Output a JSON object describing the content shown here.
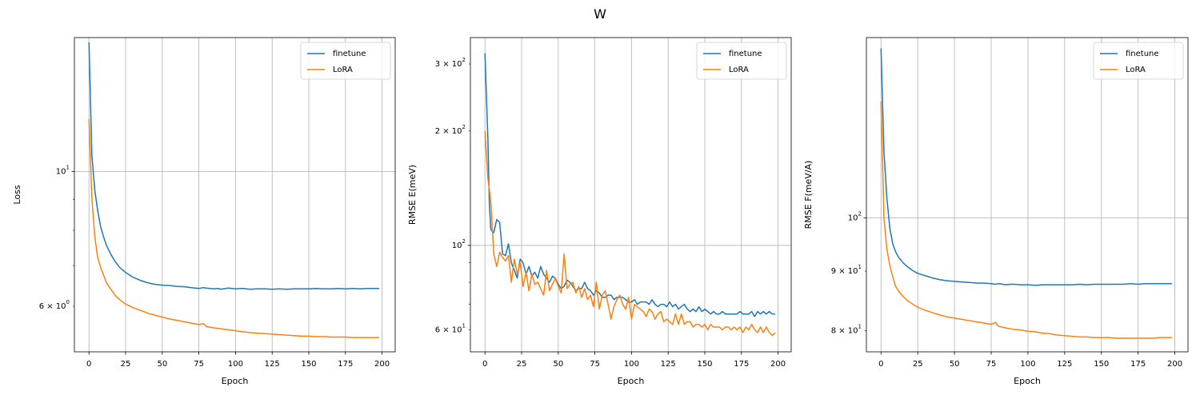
{
  "figure": {
    "title": "W"
  },
  "colors": {
    "finetune": "#1f77b4",
    "LoRA": "#ff7f0e",
    "grid": "#b0b0b0",
    "axes": "#000000",
    "legend_border": "#cccccc"
  },
  "chart_data": [
    {
      "type": "line",
      "xlabel": "Epoch",
      "ylabel": "Loss",
      "yscale": "log",
      "xlim": [
        -9.95,
        208.95
      ],
      "ylim": [
        5.05,
        16.6
      ],
      "xticks": [
        0,
        25,
        50,
        75,
        100,
        125,
        150,
        175,
        200
      ],
      "major_yticks": [
        {
          "value": 10,
          "label": "10^1"
        }
      ],
      "minor_yticks": [
        {
          "value": 6,
          "label": "6 × 10^0"
        }
      ],
      "grid": true,
      "legend": "top-right",
      "series": [
        {
          "name": "finetune",
          "x": [
            0,
            2,
            4,
            6,
            8,
            10,
            12,
            15,
            18,
            21,
            25,
            30,
            35,
            40,
            45,
            50,
            55,
            60,
            65,
            70,
            75,
            78,
            80,
            85,
            88,
            90,
            95,
            100,
            105,
            110,
            115,
            120,
            125,
            130,
            135,
            140,
            145,
            150,
            155,
            160,
            165,
            170,
            175,
            180,
            185,
            190,
            195,
            198
          ],
          "y": [
            16.3,
            10.6,
            9.3,
            8.6,
            8.1,
            7.8,
            7.55,
            7.3,
            7.1,
            6.95,
            6.82,
            6.7,
            6.62,
            6.56,
            6.52,
            6.5,
            6.49,
            6.47,
            6.46,
            6.44,
            6.42,
            6.44,
            6.43,
            6.41,
            6.42,
            6.4,
            6.43,
            6.41,
            6.42,
            6.4,
            6.41,
            6.41,
            6.4,
            6.41,
            6.4,
            6.41,
            6.41,
            6.41,
            6.42,
            6.41,
            6.41,
            6.42,
            6.41,
            6.42,
            6.41,
            6.42,
            6.42,
            6.42
          ]
        },
        {
          "name": "LoRA",
          "x": [
            0,
            2,
            4,
            6,
            8,
            10,
            12,
            15,
            18,
            21,
            25,
            30,
            35,
            40,
            45,
            50,
            55,
            60,
            65,
            70,
            75,
            78,
            80,
            85,
            88,
            90,
            95,
            100,
            105,
            110,
            115,
            120,
            125,
            130,
            135,
            140,
            145,
            150,
            155,
            160,
            165,
            170,
            175,
            180,
            185,
            190,
            195,
            198
          ],
          "y": [
            12.2,
            9.0,
            7.8,
            7.2,
            6.95,
            6.75,
            6.55,
            6.4,
            6.25,
            6.15,
            6.05,
            5.97,
            5.91,
            5.85,
            5.8,
            5.76,
            5.72,
            5.69,
            5.66,
            5.63,
            5.6,
            5.62,
            5.56,
            5.53,
            5.52,
            5.51,
            5.49,
            5.47,
            5.45,
            5.43,
            5.42,
            5.41,
            5.4,
            5.39,
            5.38,
            5.37,
            5.36,
            5.36,
            5.35,
            5.35,
            5.34,
            5.34,
            5.34,
            5.33,
            5.33,
            5.33,
            5.33,
            5.33
          ]
        }
      ]
    },
    {
      "type": "line",
      "xlabel": "Epoch",
      "ylabel": "RMSE E(meV)",
      "yscale": "log",
      "xlim": [
        -9.95,
        208.95
      ],
      "ylim": [
        52.5,
        352
      ],
      "xticks": [
        0,
        25,
        50,
        75,
        100,
        125,
        150,
        175,
        200
      ],
      "major_yticks": [
        {
          "value": 100,
          "label": "10^2"
        }
      ],
      "minor_yticks": [
        {
          "value": 60,
          "label": "6 × 10^1"
        },
        {
          "value": 200,
          "label": "2 × 10^2"
        },
        {
          "value": 300,
          "label": "3 × 10^2"
        }
      ],
      "grid": true,
      "legend": "top-right",
      "series": [
        {
          "name": "finetune",
          "x": [
            0,
            2,
            3,
            4,
            6,
            8,
            10,
            12,
            14,
            16,
            18,
            20,
            22,
            24,
            26,
            28,
            30,
            32,
            34,
            36,
            38,
            40,
            42,
            44,
            46,
            48,
            50,
            52,
            54,
            56,
            58,
            60,
            62,
            64,
            66,
            68,
            70,
            72,
            74,
            76,
            78,
            80,
            82,
            84,
            86,
            88,
            90,
            92,
            94,
            96,
            98,
            100,
            102,
            104,
            106,
            108,
            110,
            112,
            114,
            116,
            118,
            120,
            122,
            124,
            126,
            128,
            130,
            132,
            134,
            136,
            138,
            140,
            142,
            144,
            146,
            148,
            150,
            152,
            154,
            156,
            158,
            160,
            162,
            164,
            166,
            168,
            170,
            172,
            174,
            176,
            178,
            180,
            182,
            184,
            186,
            188,
            190,
            192,
            194,
            196,
            198
          ],
          "y": [
            320,
            190,
            128,
            110,
            108,
            117,
            115,
            95,
            94,
            101,
            90,
            86,
            82,
            92,
            90,
            84,
            88,
            83,
            85,
            82,
            88,
            84,
            82,
            80,
            83,
            82,
            79,
            77,
            78,
            81,
            80,
            78,
            76,
            77,
            77,
            80,
            77,
            76,
            74,
            76,
            75,
            73,
            73,
            74,
            74,
            72,
            73,
            73,
            73,
            72,
            71,
            71,
            72,
            70,
            71,
            71,
            71,
            70,
            72,
            70,
            69,
            70,
            70,
            69,
            71,
            69,
            70,
            68,
            69,
            70,
            68,
            67,
            68,
            67,
            69,
            67,
            68,
            67,
            66,
            67,
            66,
            66,
            67,
            66,
            66,
            66,
            66,
            66,
            67,
            66,
            66,
            66,
            67,
            65,
            67,
            66,
            67,
            66,
            67,
            66,
            66
          ]
        },
        {
          "name": "LoRA",
          "x": [
            0,
            2,
            3,
            4,
            6,
            8,
            10,
            12,
            14,
            16,
            18,
            20,
            22,
            24,
            26,
            28,
            30,
            32,
            34,
            36,
            38,
            40,
            42,
            44,
            46,
            48,
            50,
            52,
            54,
            56,
            58,
            60,
            62,
            64,
            66,
            68,
            70,
            72,
            74,
            76,
            78,
            80,
            82,
            84,
            86,
            88,
            90,
            92,
            94,
            96,
            98,
            100,
            102,
            104,
            106,
            108,
            110,
            112,
            114,
            116,
            118,
            120,
            122,
            124,
            126,
            128,
            130,
            132,
            134,
            136,
            138,
            140,
            142,
            144,
            146,
            148,
            150,
            152,
            154,
            156,
            158,
            160,
            162,
            164,
            166,
            168,
            170,
            172,
            174,
            176,
            178,
            180,
            182,
            184,
            186,
            188,
            190,
            192,
            194,
            196,
            198
          ],
          "y": [
            200,
            150,
            140,
            130,
            95,
            88,
            96,
            93,
            91,
            94,
            80,
            92,
            84,
            90,
            78,
            85,
            76,
            84,
            79,
            80,
            77,
            74,
            86,
            76,
            79,
            82,
            78,
            75,
            95,
            77,
            79,
            80,
            75,
            78,
            73,
            77,
            72,
            74,
            69,
            80,
            68,
            74,
            76,
            70,
            64,
            69,
            72,
            74,
            70,
            68,
            73,
            64,
            70,
            69,
            68,
            67,
            65,
            68,
            67,
            64,
            66,
            67,
            63,
            64,
            63,
            62,
            66,
            62,
            66,
            62,
            63,
            63,
            61,
            62,
            62,
            61,
            62,
            60,
            62,
            61,
            61,
            61,
            60,
            61,
            61,
            60,
            61,
            60,
            61,
            59,
            61,
            60,
            62,
            60,
            59,
            61,
            59,
            61,
            59,
            58,
            59
          ]
        }
      ]
    },
    {
      "type": "line",
      "xlabel": "Epoch",
      "ylabel": "RMSE F(meV/A)",
      "yscale": "log",
      "xlim": [
        -9.95,
        208.95
      ],
      "ylim": [
        76.7,
        143
      ],
      "xticks": [
        0,
        25,
        50,
        75,
        100,
        125,
        150,
        175,
        200
      ],
      "major_yticks": [
        {
          "value": 100,
          "label": "10^2"
        }
      ],
      "minor_yticks": [
        {
          "value": 80,
          "label": "8 × 10^1"
        },
        {
          "value": 90,
          "label": "9 × 10^1"
        }
      ],
      "grid": true,
      "legend": "top-right",
      "series": [
        {
          "name": "finetune",
          "x": [
            0,
            2,
            4,
            6,
            8,
            10,
            12,
            15,
            18,
            21,
            25,
            30,
            35,
            40,
            45,
            50,
            55,
            60,
            65,
            70,
            75,
            78,
            80,
            85,
            88,
            90,
            95,
            100,
            105,
            110,
            115,
            120,
            125,
            130,
            135,
            140,
            145,
            150,
            155,
            160,
            165,
            170,
            175,
            180,
            185,
            190,
            195,
            198
          ],
          "y": [
            140,
            114,
            104,
            98,
            95,
            93.5,
            92.5,
            91.5,
            90.8,
            90.2,
            89.6,
            89.2,
            88.8,
            88.5,
            88.3,
            88.2,
            88.1,
            88.0,
            87.9,
            87.9,
            87.8,
            87.7,
            87.8,
            87.6,
            87.7,
            87.7,
            87.6,
            87.6,
            87.5,
            87.6,
            87.6,
            87.6,
            87.6,
            87.6,
            87.7,
            87.6,
            87.7,
            87.7,
            87.7,
            87.7,
            87.7,
            87.8,
            87.7,
            87.8,
            87.8,
            87.8,
            87.8,
            87.8
          ]
        },
        {
          "name": "LoRA",
          "x": [
            0,
            2,
            4,
            6,
            8,
            10,
            12,
            15,
            18,
            21,
            25,
            30,
            35,
            40,
            45,
            50,
            55,
            60,
            65,
            70,
            75,
            78,
            80,
            85,
            88,
            90,
            95,
            100,
            105,
            110,
            115,
            120,
            125,
            130,
            135,
            140,
            145,
            150,
            155,
            160,
            165,
            170,
            175,
            180,
            185,
            190,
            195,
            198
          ],
          "y": [
            126,
            100,
            94,
            91,
            89,
            87.3,
            86.5,
            85.6,
            84.9,
            84.4,
            83.8,
            83.3,
            82.9,
            82.5,
            82.2,
            82.0,
            81.8,
            81.6,
            81.4,
            81.2,
            81.0,
            81.3,
            80.7,
            80.4,
            80.3,
            80.2,
            80.1,
            79.9,
            79.8,
            79.6,
            79.5,
            79.3,
            79.2,
            79.1,
            79.0,
            79.0,
            78.9,
            78.9,
            78.9,
            78.8,
            78.8,
            78.8,
            78.8,
            78.8,
            78.8,
            78.9,
            78.9,
            78.9
          ]
        }
      ]
    }
  ]
}
